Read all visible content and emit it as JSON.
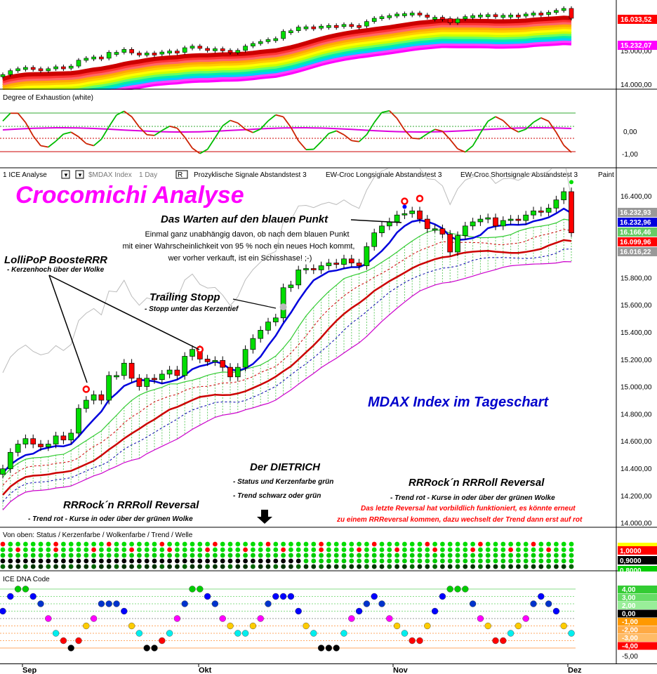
{
  "header": {
    "instrument": "1 ICE Analyse",
    "symbol": "$MDAX Index",
    "period": "1 Day",
    "mode": "R",
    "tabs": [
      "Prozyklische Signale Abstandstest 3",
      "EW-Croc Longsignale Abstandstest 3",
      "EW-Croc Shortsignale Abstandstest 3",
      "Paint"
    ]
  },
  "colors": {
    "bull": "#00dd00",
    "bear": "#ff0000",
    "trend_blue": "#0000dd",
    "trend_red": "#cc0000",
    "cloud": "#33cc33",
    "magenta": "#cc00cc",
    "accent_title": "#ff00ff"
  },
  "top_panel": {
    "axis_labels": [
      "15.000,00",
      "14.000,00"
    ],
    "flags": [
      {
        "text": "16.033,52",
        "color": "#ff0000"
      },
      {
        "text": "15.232,07",
        "color": "#ff00ff"
      }
    ]
  },
  "exhaustion_panel": {
    "title": "Degree of Exhaustion (white)",
    "axis_labels": [
      "0,00",
      "-1,00"
    ]
  },
  "main_panel": {
    "title": "Crocomichi Analyse",
    "axis_labels": [
      "16.400,00",
      "16.200,00",
      "16.000,00",
      "15.800,00",
      "15.600,00",
      "15.400,00",
      "15.200,00",
      "15.000,00",
      "14.800,00",
      "14.600,00",
      "14.400,00",
      "14.200,00",
      "14.000,00"
    ],
    "flags": [
      {
        "text": "16.232,93",
        "color": "#999999"
      },
      {
        "text": "16.232,96",
        "color": "#0000dd"
      },
      {
        "text": "16.166,46",
        "color": "#66cc66"
      },
      {
        "text": "16.099,96",
        "color": "#ff0000"
      },
      {
        "text": "16.016,22",
        "color": "#999999"
      }
    ],
    "annotations": {
      "blue_point_head": "Das Warten auf den blauen Punkt",
      "blue_point_l1": "Einmal ganz unabhängig davon, ob nach dem blauen Punkt",
      "blue_point_l2": "mit einer Wahrscheinlichkeit von 95 % noch ein neues Hoch kommt,",
      "blue_point_l3": "wer vorher verkauft, ist ein Schisshase! ;-)",
      "lollipop_head": "LolliPoP BoosteRRR",
      "lollipop_sub": "- Kerzenhoch über der Wolke",
      "trailing_head": "Trailing Stopp",
      "trailing_sub": "- Stopp unter das Kerzentief",
      "mdax": "MDAX Index im Tageschart",
      "dietrich_head": "Der DIETRICH",
      "dietrich_sub1": "- Status und Kerzenfarbe grün",
      "dietrich_sub2": "- Trend schwarz oder grün",
      "rr_left_head": "RRRock´n RRRoll Reversal",
      "rr_left_sub": "- Trend rot - Kurse in oder über der grünen Wolke",
      "rr_right_head": "RRRock´n RRRoll Reversal",
      "rr_right_sub": "- Trend rot - Kurse in oder über der grünen Wolke",
      "rr_right_red1": "Das letzte Reversal hat vorbildlich funktioniert, es könnte erneut",
      "rr_right_red2": "zu einem RRReversal kommen, dazu wechselt der Trend dann erst auf rot"
    }
  },
  "status_panel": {
    "title": "Von oben: Status / Kerzenfarbe / Wolkenfarbe / Trend / Welle",
    "flags": [
      {
        "text": "1,0000",
        "color": "#ff0000"
      },
      {
        "text": "0,9000",
        "color": "#000000"
      },
      {
        "text": "0,8000",
        "color": "#00cc00"
      }
    ]
  },
  "dna_panel": {
    "title": "ICE DNA Code",
    "flags": [
      {
        "text": "4,00",
        "color": "#33cc33"
      },
      {
        "text": "3,00",
        "color": "#66dd66"
      },
      {
        "text": "2,00",
        "color": "#99ee99"
      },
      {
        "text": "0,00",
        "color": "#000000"
      },
      {
        "text": "-1,00",
        "color": "#ff9900"
      },
      {
        "text": "-2,00",
        "color": "#ffaa44"
      },
      {
        "text": "-3,00",
        "color": "#ffbb66"
      },
      {
        "text": "-4,00",
        "color": "#ff0000"
      }
    ],
    "bottom_label": "-5,00"
  },
  "x_axis": {
    "months": [
      "Sep",
      "Okt",
      "Nov",
      "Dez"
    ]
  },
  "chart_data": {
    "type": "candlestick",
    "title": "Crocomichi Analyse",
    "subtitle": "MDAX Index im Tageschart",
    "ylim": [
      14000,
      16500
    ],
    "x_months": [
      "Sep",
      "Okt",
      "Nov",
      "Dez"
    ],
    "last_values": {
      "close": 16099.96,
      "trend": 16232.96,
      "cloud_top": 16166.46,
      "upper": 16232.93,
      "lower": 16016.22
    },
    "closes": [
      14380,
      14500,
      14560,
      14600,
      14560,
      14540,
      14560,
      14620,
      14590,
      14640,
      14820,
      14880,
      14920,
      14880,
      15060,
      15060,
      15150,
      15040,
      14980,
      15040,
      15030,
      15070,
      15100,
      15060,
      15200,
      15250,
      15180,
      15160,
      15170,
      15120,
      15050,
      15120,
      15250,
      15330,
      15390,
      15450,
      15480,
      15700,
      15720,
      15830,
      15840,
      15830,
      15860,
      15880,
      15870,
      15910,
      15880,
      15860,
      16000,
      16100,
      16150,
      16180,
      16230,
      16240,
      16260,
      16200,
      16130,
      16130,
      16090,
      15960,
      16080,
      16150,
      16180,
      16200,
      16210,
      16150,
      16190,
      16200,
      16190,
      16230,
      16260,
      16250,
      16280,
      16340,
      16400,
      16100
    ]
  }
}
